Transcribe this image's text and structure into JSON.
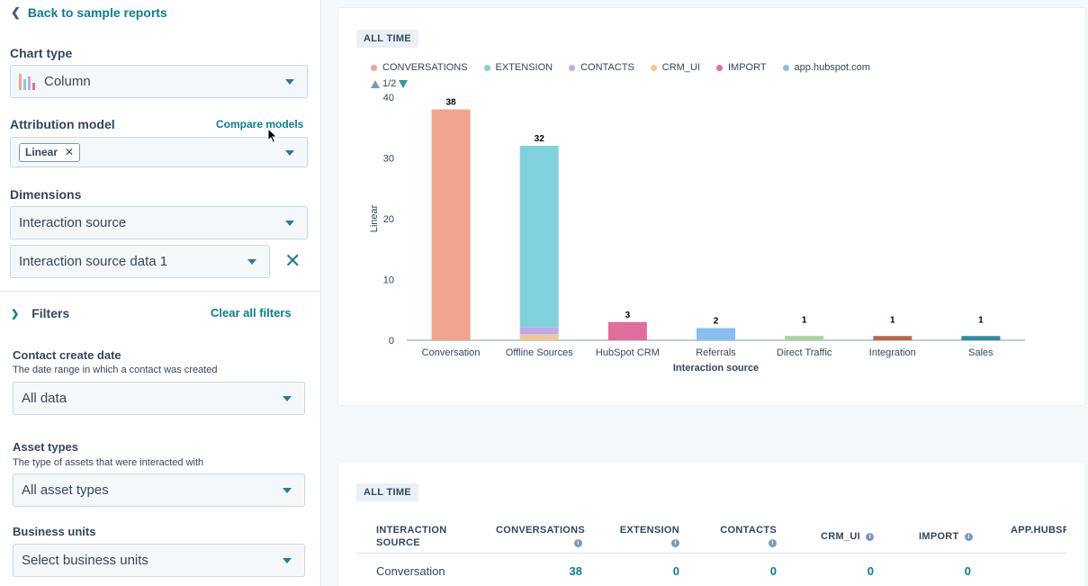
{
  "sidebar": {
    "back_label": "Back to sample reports",
    "chart_type": {
      "label": "Chart type",
      "value": "Column"
    },
    "attribution": {
      "label": "Attribution model",
      "compare_label": "Compare models",
      "tag": "Linear"
    },
    "dimensions": {
      "label": "Dimensions",
      "primary": "Interaction source",
      "secondary": "Interaction source data 1"
    },
    "filters": {
      "label": "Filters",
      "clear_label": "Clear all filters",
      "contact_create_date": {
        "label": "Contact create date",
        "description": "The date range in which a contact was created",
        "value": "All data"
      },
      "asset_types": {
        "label": "Asset types",
        "description": "The type of assets that were interacted with",
        "value": "All asset types"
      },
      "business_units": {
        "label": "Business units",
        "value": "Select business units"
      }
    }
  },
  "chart_panel": {
    "badge": "ALL TIME",
    "pager": "1/2"
  },
  "chart_data": {
    "type": "bar",
    "stacked": true,
    "categories": [
      "Conversation",
      "Offline Sources",
      "HubSpot CRM",
      "Referrals",
      "Direct Traffic",
      "Integration",
      "Sales"
    ],
    "totals": [
      "38",
      "32",
      "3",
      "2",
      "1",
      "1",
      "1"
    ],
    "series": [
      {
        "name": "CONVERSATIONS",
        "color": "#f2a58e",
        "values": [
          38,
          0,
          0,
          0,
          0,
          0,
          0
        ]
      },
      {
        "name": "EXTENSION",
        "color": "#7fd1db",
        "values": [
          0,
          29.9,
          0,
          0,
          0,
          0,
          0
        ]
      },
      {
        "name": "CONTACTS",
        "color": "#c2a8e8",
        "values": [
          0,
          1.1,
          0,
          0,
          0,
          0,
          0
        ]
      },
      {
        "name": "CRM_UI",
        "color": "#f0c896",
        "values": [
          0,
          1.0,
          0,
          0,
          0,
          0,
          0
        ]
      },
      {
        "name": "IMPORT",
        "color": "#e06e9c",
        "values": [
          0,
          0,
          3,
          0,
          0,
          0,
          0
        ]
      },
      {
        "name": "app.hubspot.com",
        "color": "#86bff0",
        "values": [
          0,
          0,
          0,
          2,
          0,
          0,
          0
        ]
      }
    ],
    "extra_bars": [
      {
        "category": "Direct Traffic",
        "color": "#a9d49a",
        "value": 1
      },
      {
        "category": "Integration",
        "color": "#b8674a",
        "value": 1
      },
      {
        "category": "Sales",
        "color": "#2d8ea3",
        "value": 1
      }
    ],
    "yticks": [
      "0",
      "10",
      "20",
      "30",
      "40"
    ],
    "ylim": [
      0,
      40
    ],
    "xlabel": "Interaction source",
    "ylabel": "Linear",
    "legend": "top-left"
  },
  "table_panel": {
    "badge": "ALL TIME",
    "headers": {
      "source": "INTERACTION SOURCE",
      "conversations": "CONVERSATIONS",
      "extension": "EXTENSION",
      "contacts": "CONTACTS",
      "crm_ui": "CRM_UI",
      "import": "IMPORT",
      "app": "APP.HUBSP"
    },
    "row": {
      "source": "Conversation",
      "conversations": "38",
      "extension": "0",
      "contacts": "0",
      "crm_ui": "0",
      "import": "0"
    }
  },
  "icons": {
    "info": "i"
  }
}
